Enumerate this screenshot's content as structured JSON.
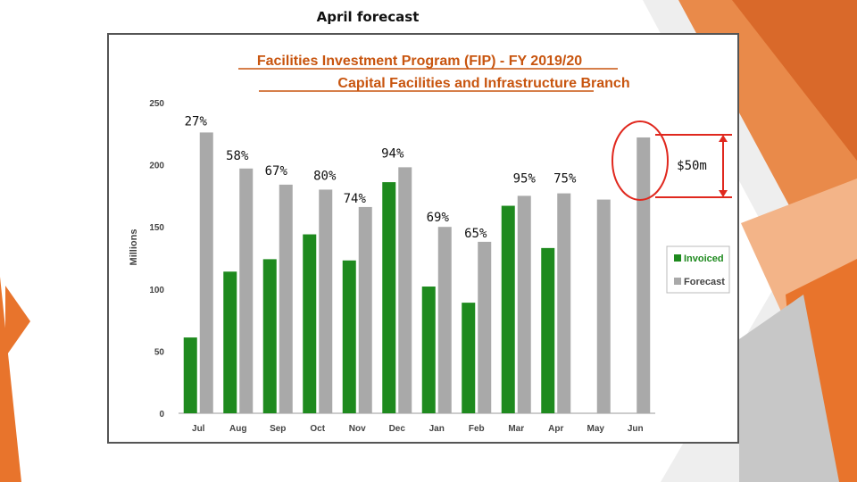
{
  "slide": {
    "title": "April forecast"
  },
  "annotation": {
    "label": "$50m"
  },
  "colors": {
    "invoiced": "#1e8a1e",
    "forecast": "#a9a9a9",
    "title": "#c8550f",
    "accent": "#e0281e",
    "orange": "#e8742c"
  },
  "chart_data": {
    "type": "bar",
    "title": "Facilities Investment Program (FIP) - FY 2019/20",
    "subtitle": "Capital Facilities and Infrastructure Branch",
    "xlabel": "",
    "ylabel": "Millions",
    "ylim": [
      0,
      250
    ],
    "yticks": [
      0,
      50,
      100,
      150,
      200,
      250
    ],
    "categories": [
      "Jul",
      "Aug",
      "Sep",
      "Oct",
      "Nov",
      "Dec",
      "Jan",
      "Feb",
      "Mar",
      "Apr",
      "May",
      "Jun"
    ],
    "series": [
      {
        "name": "Invoiced",
        "values": [
          61,
          114,
          124,
          144,
          123,
          186,
          102,
          89,
          167,
          133,
          null,
          null
        ]
      },
      {
        "name": "Forecast",
        "values": [
          226,
          197,
          184,
          180,
          166,
          198,
          150,
          138,
          175,
          177,
          172,
          222
        ]
      }
    ],
    "percent_labels": [
      "27%",
      "58%",
      "67%",
      "80%",
      "74%",
      "94%",
      "69%",
      "65%",
      "95%",
      "75%",
      "",
      ""
    ],
    "legend": [
      "Invoiced",
      "Forecast"
    ],
    "legend_position": "right",
    "grid": false
  }
}
